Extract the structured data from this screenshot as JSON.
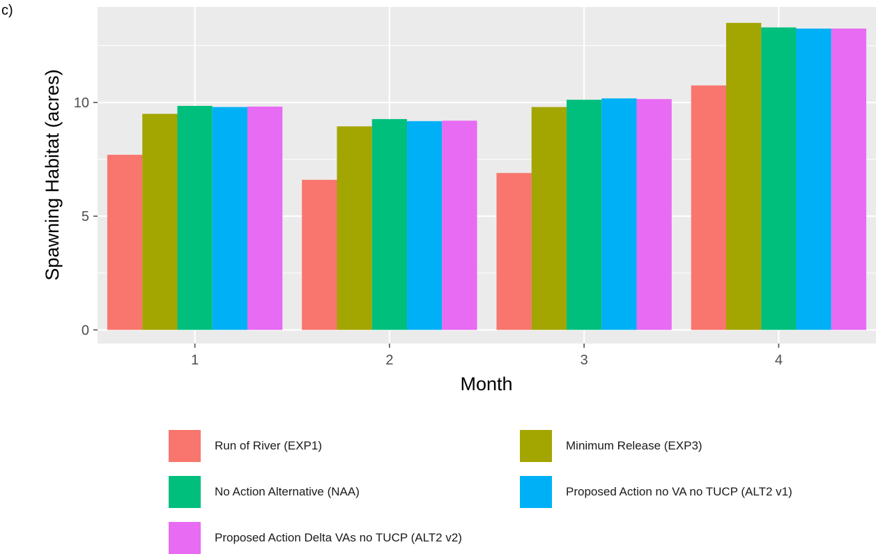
{
  "panel_tag": "c)",
  "chart_data": {
    "type": "bar",
    "xlabel": "Month",
    "ylabel": "Spawning Habitat (acres)",
    "categories": [
      "1",
      "2",
      "3",
      "4"
    ],
    "ylim": [
      -0.6,
      14.2
    ],
    "yticks": [
      0,
      5,
      10
    ],
    "grid": true,
    "legend_position": "bottom",
    "series": [
      {
        "name": "Run of River (EXP1)",
        "color": "#F8766D",
        "values": [
          7.7,
          6.6,
          6.9,
          10.75
        ]
      },
      {
        "name": "Minimum Release (EXP3)",
        "color": "#A3A500",
        "values": [
          9.5,
          8.95,
          9.8,
          13.5
        ]
      },
      {
        "name": "No Action Alternative (NAA)",
        "color": "#00BF7D",
        "values": [
          9.85,
          9.27,
          10.12,
          13.3
        ]
      },
      {
        "name": "Proposed Action no VA no TUCP (ALT2 v1)",
        "color": "#00B0F6",
        "values": [
          9.8,
          9.18,
          10.18,
          13.25
        ]
      },
      {
        "name": "Proposed Action Delta VAs no TUCP (ALT2 v2)",
        "color": "#E76BF3",
        "values": [
          9.82,
          9.2,
          10.15,
          13.25
        ]
      }
    ]
  }
}
